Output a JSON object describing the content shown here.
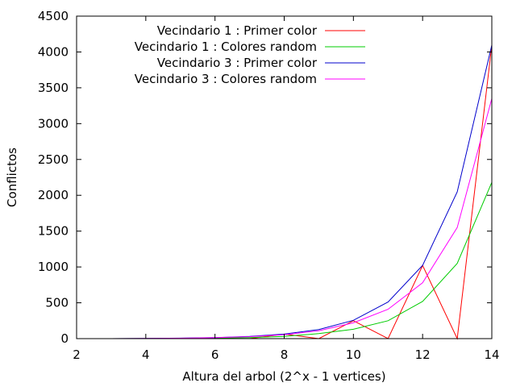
{
  "chart_data": {
    "type": "line",
    "title": "",
    "xlabel": "Altura del arbol (2^x - 1 vertices)",
    "ylabel": "Conflictos",
    "xlim": [
      2,
      14
    ],
    "ylim": [
      0,
      4500
    ],
    "xticks": [
      2,
      4,
      6,
      8,
      10,
      12,
      14
    ],
    "yticks": [
      0,
      500,
      1000,
      1500,
      2000,
      2500,
      3000,
      3500,
      4000,
      4500
    ],
    "grid": false,
    "legend_position": "top-left",
    "x": [
      2,
      3,
      4,
      5,
      6,
      7,
      8,
      9,
      10,
      11,
      12,
      13,
      14
    ],
    "series": [
      {
        "name": "Vecindario 1 : Primer color",
        "color": "#ff0000",
        "values": [
          0,
          0,
          0,
          0,
          0,
          0,
          63,
          0,
          250,
          0,
          1020,
          0,
          4095
        ]
      },
      {
        "name": "Vecindario 1 : Colores random",
        "color": "#00cc00",
        "values": [
          0,
          0,
          2,
          4,
          8,
          15,
          30,
          70,
          130,
          250,
          520,
          1050,
          2180
        ]
      },
      {
        "name": "Vecindario 3 : Primer color",
        "color": "#0000cc",
        "values": [
          0,
          0,
          3,
          7,
          15,
          31,
          63,
          127,
          255,
          511,
          1023,
          2047,
          4095
        ]
      },
      {
        "name": "Vecindario 3 : Colores random",
        "color": "#ff00ff",
        "values": [
          0,
          0,
          3,
          6,
          13,
          27,
          55,
          110,
          220,
          410,
          780,
          1550,
          3350
        ]
      }
    ]
  }
}
